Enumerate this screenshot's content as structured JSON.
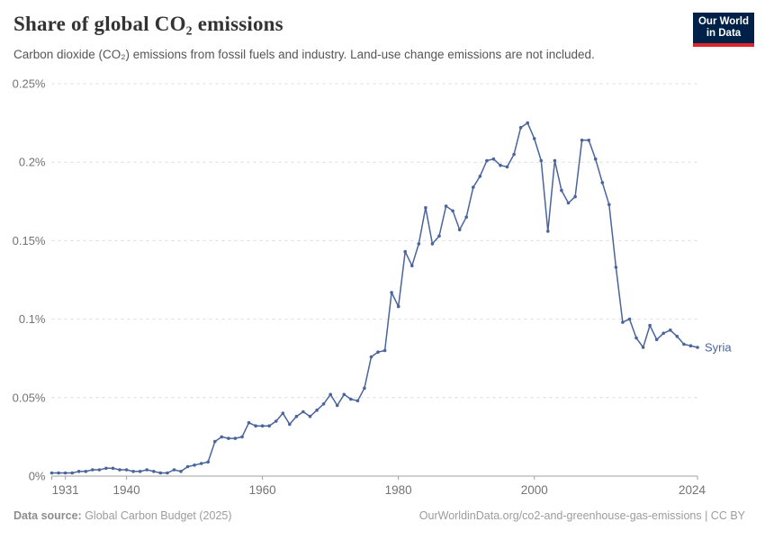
{
  "header": {
    "title": "Share of global CO₂ emissions",
    "subtitle": "Carbon dioxide (CO₂) emissions from fossil fuels and industry. Land-use change emissions are not included.",
    "logo": {
      "line1": "Our World",
      "line2": "in Data",
      "bg_color": "#002147",
      "accent_color": "#e0242b"
    }
  },
  "chart_data": {
    "type": "line",
    "title": "Share of global CO₂ emissions",
    "xlabel": "",
    "ylabel": "",
    "xlim": [
      1929,
      2024
    ],
    "ylim": [
      0,
      0.25
    ],
    "grid": "horizontal-dashed",
    "legend_position": "end-of-line-label",
    "x_ticks": [
      1931,
      1940,
      1960,
      1980,
      2000,
      2024
    ],
    "y_ticks": [
      {
        "value": 0,
        "label": "0%"
      },
      {
        "value": 0.05,
        "label": "0.05%"
      },
      {
        "value": 0.1,
        "label": "0.1%"
      },
      {
        "value": 0.15,
        "label": "0.15%"
      },
      {
        "value": 0.2,
        "label": "0.2%"
      },
      {
        "value": 0.25,
        "label": "0.25%"
      }
    ],
    "series": [
      {
        "name": "Syria",
        "color": "#4a649c",
        "unit": "%",
        "x": [
          1929,
          1930,
          1931,
          1932,
          1933,
          1934,
          1935,
          1936,
          1937,
          1938,
          1939,
          1940,
          1941,
          1942,
          1943,
          1944,
          1945,
          1946,
          1947,
          1948,
          1949,
          1950,
          1951,
          1952,
          1953,
          1954,
          1955,
          1956,
          1957,
          1958,
          1959,
          1960,
          1961,
          1962,
          1963,
          1964,
          1965,
          1966,
          1967,
          1968,
          1969,
          1970,
          1971,
          1972,
          1973,
          1974,
          1975,
          1976,
          1977,
          1978,
          1979,
          1980,
          1981,
          1982,
          1983,
          1984,
          1985,
          1986,
          1987,
          1988,
          1989,
          1990,
          1991,
          1992,
          1993,
          1994,
          1995,
          1996,
          1997,
          1998,
          1999,
          2000,
          2001,
          2002,
          2003,
          2004,
          2005,
          2006,
          2007,
          2008,
          2009,
          2010,
          2011,
          2012,
          2013,
          2014,
          2015,
          2016,
          2017,
          2018,
          2019,
          2020,
          2021,
          2022,
          2023,
          2024
        ],
        "values": [
          0.002,
          0.002,
          0.002,
          0.002,
          0.003,
          0.003,
          0.004,
          0.004,
          0.005,
          0.005,
          0.004,
          0.004,
          0.003,
          0.003,
          0.004,
          0.003,
          0.002,
          0.002,
          0.004,
          0.003,
          0.006,
          0.007,
          0.008,
          0.009,
          0.022,
          0.025,
          0.024,
          0.024,
          0.025,
          0.034,
          0.032,
          0.032,
          0.032,
          0.035,
          0.04,
          0.033,
          0.038,
          0.041,
          0.038,
          0.042,
          0.046,
          0.052,
          0.045,
          0.052,
          0.049,
          0.048,
          0.056,
          0.076,
          0.079,
          0.08,
          0.117,
          0.108,
          0.143,
          0.134,
          0.148,
          0.171,
          0.148,
          0.153,
          0.172,
          0.169,
          0.157,
          0.165,
          0.184,
          0.191,
          0.201,
          0.202,
          0.198,
          0.197,
          0.205,
          0.222,
          0.225,
          0.215,
          0.201,
          0.156,
          0.201,
          0.182,
          0.174,
          0.178,
          0.214,
          0.214,
          0.202,
          0.187,
          0.173,
          0.133,
          0.098,
          0.1,
          0.088,
          0.082,
          0.096,
          0.087,
          0.091,
          0.093,
          0.089,
          0.084,
          0.083,
          0.082
        ]
      }
    ],
    "colors": {
      "grid": "#dcdcdc",
      "axis": "#a1a1a1",
      "tick_label": "#737373"
    }
  },
  "footer": {
    "source_label": "Data source:",
    "source_value": " Global Carbon Budget (2025)",
    "attribution": "OurWorldinData.org/co2-and-greenhouse-gas-emissions | CC BY"
  }
}
